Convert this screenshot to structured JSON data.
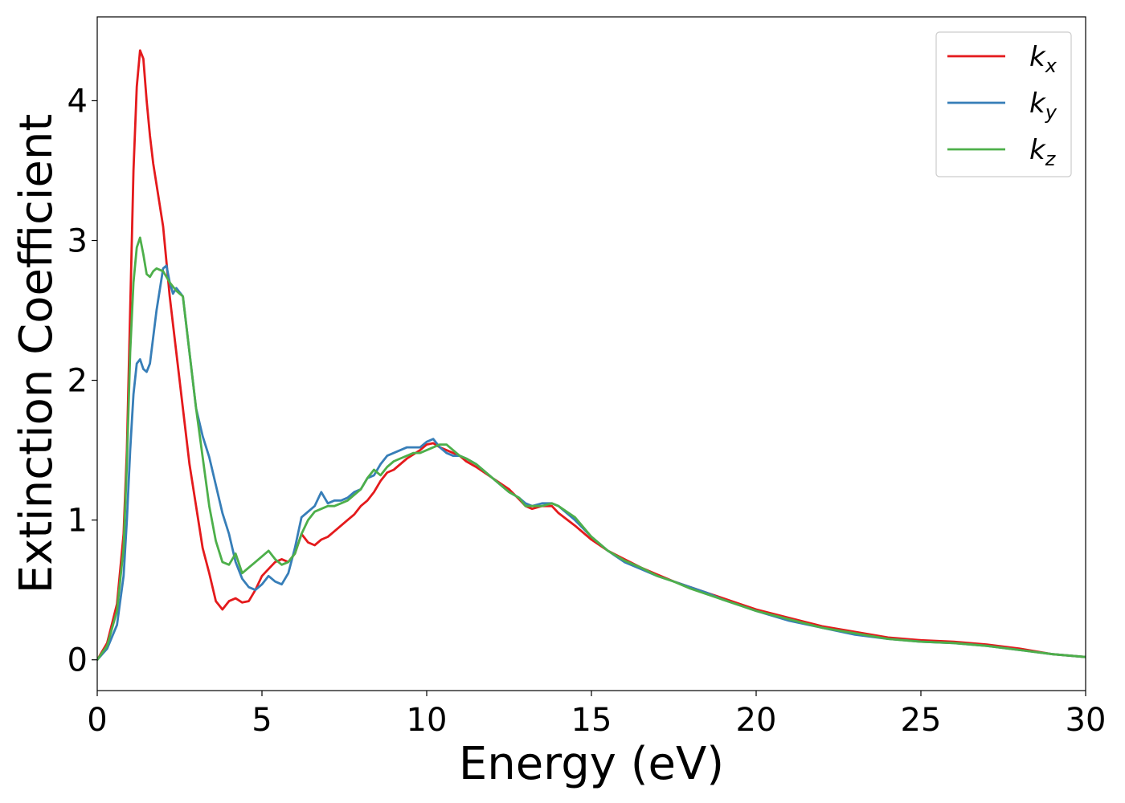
{
  "chart_data": {
    "type": "line",
    "xlabel": "Energy (eV)",
    "ylabel": "Extinction Coefficient",
    "xlim": [
      0,
      30
    ],
    "ylim": [
      -0.22,
      4.6
    ],
    "xticks": [
      0,
      5,
      10,
      15,
      20,
      25,
      30
    ],
    "xtick_labels": [
      "0",
      "5",
      "10",
      "15",
      "20",
      "25",
      "30"
    ],
    "yticks": [
      0,
      1,
      2,
      3,
      4
    ],
    "ytick_labels": [
      "0",
      "1",
      "2",
      "3",
      "4"
    ],
    "grid": false,
    "legend_position": "top-right",
    "series": [
      {
        "name": "k_x",
        "label_main": "k",
        "label_sub": "x",
        "color": "#e41a1c",
        "x": [
          0,
          0.3,
          0.6,
          0.8,
          0.9,
          1.0,
          1.1,
          1.2,
          1.3,
          1.4,
          1.5,
          1.6,
          1.7,
          1.8,
          2.0,
          2.2,
          2.4,
          2.6,
          2.8,
          3.0,
          3.2,
          3.4,
          3.6,
          3.8,
          4.0,
          4.2,
          4.4,
          4.6,
          4.8,
          5.0,
          5.2,
          5.4,
          5.6,
          5.8,
          6.0,
          6.2,
          6.4,
          6.6,
          6.8,
          7.0,
          7.2,
          7.4,
          7.6,
          7.8,
          8.0,
          8.2,
          8.4,
          8.6,
          8.8,
          9.0,
          9.2,
          9.4,
          9.6,
          9.8,
          10.0,
          10.2,
          10.4,
          10.6,
          10.8,
          11.0,
          11.2,
          11.5,
          12.0,
          12.5,
          12.8,
          13.0,
          13.2,
          13.5,
          13.8,
          14.0,
          14.5,
          15.0,
          15.5,
          16.0,
          16.5,
          17.0,
          17.5,
          18.0,
          18.5,
          19.0,
          19.5,
          20.0,
          21.0,
          22.0,
          23.0,
          24.0,
          25.0,
          26.0,
          27.0,
          28.0,
          29.0,
          30.0
        ],
        "values": [
          0.0,
          0.12,
          0.4,
          0.9,
          1.5,
          2.5,
          3.5,
          4.1,
          4.36,
          4.3,
          4.0,
          3.75,
          3.55,
          3.4,
          3.1,
          2.6,
          2.2,
          1.8,
          1.4,
          1.1,
          0.8,
          0.62,
          0.42,
          0.36,
          0.42,
          0.44,
          0.41,
          0.42,
          0.5,
          0.6,
          0.65,
          0.7,
          0.72,
          0.7,
          0.76,
          0.9,
          0.84,
          0.82,
          0.86,
          0.88,
          0.92,
          0.96,
          1.0,
          1.04,
          1.1,
          1.14,
          1.2,
          1.28,
          1.34,
          1.36,
          1.4,
          1.44,
          1.47,
          1.5,
          1.54,
          1.55,
          1.52,
          1.5,
          1.48,
          1.46,
          1.42,
          1.38,
          1.3,
          1.22,
          1.15,
          1.1,
          1.08,
          1.1,
          1.1,
          1.05,
          0.96,
          0.86,
          0.78,
          0.72,
          0.66,
          0.61,
          0.56,
          0.52,
          0.48,
          0.44,
          0.4,
          0.36,
          0.3,
          0.24,
          0.2,
          0.16,
          0.14,
          0.13,
          0.11,
          0.08,
          0.04,
          0.02
        ]
      },
      {
        "name": "k_y",
        "label_main": "k",
        "label_sub": "y",
        "color": "#377eb8",
        "x": [
          0,
          0.3,
          0.6,
          0.8,
          0.9,
          1.0,
          1.1,
          1.2,
          1.3,
          1.4,
          1.5,
          1.6,
          1.8,
          2.0,
          2.1,
          2.2,
          2.3,
          2.4,
          2.6,
          2.8,
          3.0,
          3.2,
          3.4,
          3.6,
          3.8,
          4.0,
          4.2,
          4.4,
          4.6,
          4.8,
          5.0,
          5.2,
          5.4,
          5.6,
          5.8,
          6.0,
          6.2,
          6.4,
          6.6,
          6.8,
          7.0,
          7.2,
          7.4,
          7.6,
          7.8,
          8.0,
          8.2,
          8.4,
          8.6,
          8.8,
          9.0,
          9.2,
          9.4,
          9.6,
          9.8,
          10.0,
          10.2,
          10.4,
          10.6,
          10.8,
          11.0,
          11.2,
          11.5,
          12.0,
          12.5,
          12.8,
          13.0,
          13.2,
          13.5,
          13.8,
          14.0,
          14.5,
          15.0,
          15.5,
          16.0,
          16.5,
          17.0,
          17.5,
          18.0,
          18.5,
          19.0,
          19.5,
          20.0,
          21.0,
          22.0,
          23.0,
          24.0,
          25.0,
          26.0,
          27.0,
          28.0,
          29.0,
          30.0
        ],
        "values": [
          0.0,
          0.08,
          0.25,
          0.6,
          1.0,
          1.5,
          1.9,
          2.12,
          2.15,
          2.08,
          2.06,
          2.12,
          2.5,
          2.8,
          2.82,
          2.7,
          2.62,
          2.66,
          2.6,
          2.2,
          1.8,
          1.6,
          1.45,
          1.25,
          1.05,
          0.9,
          0.7,
          0.58,
          0.52,
          0.5,
          0.54,
          0.6,
          0.56,
          0.54,
          0.62,
          0.8,
          1.02,
          1.06,
          1.1,
          1.2,
          1.12,
          1.14,
          1.14,
          1.16,
          1.2,
          1.22,
          1.3,
          1.32,
          1.4,
          1.46,
          1.48,
          1.5,
          1.52,
          1.52,
          1.52,
          1.56,
          1.58,
          1.52,
          1.48,
          1.46,
          1.46,
          1.44,
          1.4,
          1.3,
          1.2,
          1.16,
          1.12,
          1.1,
          1.12,
          1.12,
          1.1,
          1.0,
          0.88,
          0.78,
          0.7,
          0.65,
          0.6,
          0.56,
          0.52,
          0.48,
          0.43,
          0.39,
          0.35,
          0.28,
          0.23,
          0.18,
          0.15,
          0.13,
          0.12,
          0.1,
          0.07,
          0.04,
          0.02
        ]
      },
      {
        "name": "k_z",
        "label_main": "k",
        "label_sub": "z",
        "color": "#4daf4a",
        "x": [
          0,
          0.3,
          0.6,
          0.8,
          0.9,
          1.0,
          1.1,
          1.2,
          1.3,
          1.4,
          1.5,
          1.6,
          1.7,
          1.8,
          2.0,
          2.2,
          2.4,
          2.6,
          2.8,
          3.0,
          3.2,
          3.4,
          3.6,
          3.8,
          4.0,
          4.2,
          4.4,
          4.6,
          4.8,
          5.0,
          5.2,
          5.4,
          5.6,
          5.8,
          6.0,
          6.2,
          6.4,
          6.6,
          6.8,
          7.0,
          7.2,
          7.4,
          7.6,
          7.8,
          8.0,
          8.2,
          8.4,
          8.6,
          8.8,
          9.0,
          9.2,
          9.4,
          9.6,
          9.8,
          10.0,
          10.2,
          10.4,
          10.6,
          10.8,
          11.0,
          11.2,
          11.5,
          12.0,
          12.5,
          12.8,
          13.0,
          13.2,
          13.5,
          13.8,
          14.0,
          14.5,
          15.0,
          15.5,
          16.0,
          16.5,
          17.0,
          17.5,
          18.0,
          18.5,
          19.0,
          19.5,
          20.0,
          21.0,
          22.0,
          23.0,
          24.0,
          25.0,
          26.0,
          27.0,
          28.0,
          29.0,
          30.0
        ],
        "values": [
          0.0,
          0.1,
          0.35,
          0.8,
          1.4,
          2.2,
          2.7,
          2.95,
          3.02,
          2.9,
          2.76,
          2.74,
          2.78,
          2.8,
          2.78,
          2.7,
          2.64,
          2.6,
          2.2,
          1.8,
          1.45,
          1.1,
          0.85,
          0.7,
          0.68,
          0.76,
          0.62,
          0.66,
          0.7,
          0.74,
          0.78,
          0.72,
          0.68,
          0.7,
          0.76,
          0.9,
          1.0,
          1.06,
          1.08,
          1.1,
          1.1,
          1.12,
          1.14,
          1.18,
          1.22,
          1.3,
          1.36,
          1.32,
          1.38,
          1.42,
          1.44,
          1.46,
          1.48,
          1.48,
          1.5,
          1.52,
          1.54,
          1.54,
          1.5,
          1.46,
          1.44,
          1.4,
          1.3,
          1.2,
          1.16,
          1.1,
          1.1,
          1.1,
          1.12,
          1.1,
          1.02,
          0.88,
          0.78,
          0.71,
          0.66,
          0.6,
          0.56,
          0.51,
          0.47,
          0.43,
          0.39,
          0.35,
          0.29,
          0.23,
          0.19,
          0.15,
          0.13,
          0.12,
          0.1,
          0.07,
          0.04,
          0.02
        ]
      }
    ]
  }
}
